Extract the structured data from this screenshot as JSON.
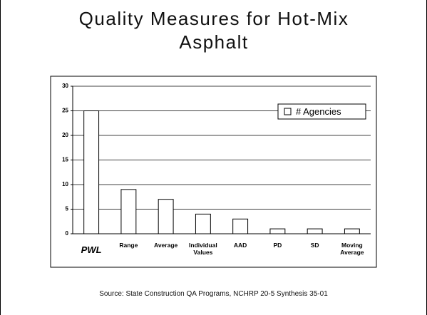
{
  "chart_data": {
    "type": "bar",
    "title": "Quality Measures for Hot-Mix Asphalt",
    "categories": [
      "PWL",
      "Range",
      "Average",
      "Individual Values",
      "AAD",
      "PD",
      "SD",
      "Moving Average"
    ],
    "series": [
      {
        "name": "# Agencies",
        "color": "#ffffff",
        "values": [
          25,
          9,
          7,
          4,
          3,
          1,
          1,
          1
        ]
      }
    ],
    "ylim": [
      0,
      30
    ],
    "yticks": [
      0,
      5,
      10,
      15,
      20,
      25,
      30
    ],
    "grid": true,
    "legend": "upper right",
    "source": "Source: State Construction QA Programs, NCHRP 20-5 Synthesis 35-01"
  }
}
